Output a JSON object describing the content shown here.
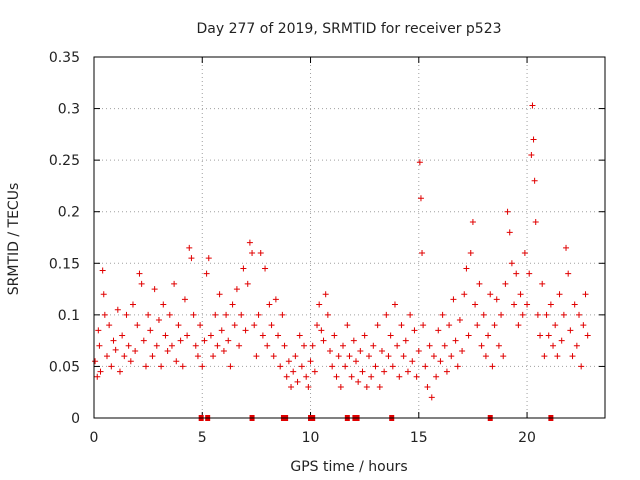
{
  "chart_data": {
    "type": "scatter",
    "title": "Day 277 of 2019, SRMTID for receiver p523",
    "xlabel": "GPS time / hours",
    "ylabel": "SRMTID / TECUs",
    "xlim": [
      0,
      23.6
    ],
    "ylim": [
      0,
      0.35
    ],
    "x_ticks": [
      0,
      5,
      10,
      15,
      20
    ],
    "x_tick_labels": [
      "0",
      "5",
      "10",
      "15",
      "20"
    ],
    "y_ticks": [
      0,
      0.05,
      0.1,
      0.15,
      0.2,
      0.25,
      0.3,
      0.35
    ],
    "y_tick_labels": [
      "0",
      "0.05",
      "0.1",
      "0.15",
      "0.2",
      "0.25",
      "0.3",
      "0.35"
    ],
    "grid": true,
    "marker": "plus",
    "series_color": "#e00000",
    "zero_markers_x": [
      4.95,
      5.25,
      7.3,
      8.75,
      8.85,
      10.0,
      10.1,
      11.7,
      12.05,
      12.15,
      13.75,
      18.3,
      21.1
    ],
    "series": [
      {
        "name": "SRMTID",
        "points": [
          [
            0.05,
            0.055
          ],
          [
            0.15,
            0.04
          ],
          [
            0.2,
            0.085
          ],
          [
            0.25,
            0.07
          ],
          [
            0.3,
            0.045
          ],
          [
            0.4,
            0.143
          ],
          [
            0.45,
            0.12
          ],
          [
            0.5,
            0.1
          ],
          [
            0.6,
            0.06
          ],
          [
            0.7,
            0.09
          ],
          [
            0.8,
            0.05
          ],
          [
            0.9,
            0.075
          ],
          [
            1.0,
            0.066
          ],
          [
            1.1,
            0.105
          ],
          [
            1.2,
            0.045
          ],
          [
            1.3,
            0.08
          ],
          [
            1.4,
            0.06
          ],
          [
            1.5,
            0.1
          ],
          [
            1.6,
            0.07
          ],
          [
            1.7,
            0.055
          ],
          [
            1.8,
            0.11
          ],
          [
            1.9,
            0.065
          ],
          [
            2.0,
            0.09
          ],
          [
            2.1,
            0.14
          ],
          [
            2.2,
            0.13
          ],
          [
            2.3,
            0.075
          ],
          [
            2.4,
            0.05
          ],
          [
            2.5,
            0.1
          ],
          [
            2.6,
            0.085
          ],
          [
            2.7,
            0.06
          ],
          [
            2.8,
            0.125
          ],
          [
            2.9,
            0.07
          ],
          [
            3.0,
            0.095
          ],
          [
            3.1,
            0.05
          ],
          [
            3.2,
            0.11
          ],
          [
            3.3,
            0.08
          ],
          [
            3.4,
            0.065
          ],
          [
            3.5,
            0.1
          ],
          [
            3.6,
            0.07
          ],
          [
            3.7,
            0.13
          ],
          [
            3.8,
            0.055
          ],
          [
            3.9,
            0.09
          ],
          [
            4.0,
            0.075
          ],
          [
            4.1,
            0.05
          ],
          [
            4.2,
            0.115
          ],
          [
            4.3,
            0.08
          ],
          [
            4.4,
            0.165
          ],
          [
            4.5,
            0.155
          ],
          [
            4.6,
            0.1
          ],
          [
            4.7,
            0.07
          ],
          [
            4.8,
            0.06
          ],
          [
            4.9,
            0.09
          ],
          [
            5.0,
            0.05
          ],
          [
            5.1,
            0.075
          ],
          [
            5.2,
            0.14
          ],
          [
            5.3,
            0.155
          ],
          [
            5.4,
            0.08
          ],
          [
            5.5,
            0.06
          ],
          [
            5.6,
            0.1
          ],
          [
            5.7,
            0.07
          ],
          [
            5.8,
            0.12
          ],
          [
            5.9,
            0.085
          ],
          [
            6.0,
            0.065
          ],
          [
            6.1,
            0.1
          ],
          [
            6.2,
            0.075
          ],
          [
            6.3,
            0.05
          ],
          [
            6.4,
            0.11
          ],
          [
            6.5,
            0.09
          ],
          [
            6.6,
            0.125
          ],
          [
            6.7,
            0.07
          ],
          [
            6.8,
            0.1
          ],
          [
            6.9,
            0.145
          ],
          [
            7.0,
            0.085
          ],
          [
            7.1,
            0.13
          ],
          [
            7.2,
            0.17
          ],
          [
            7.3,
            0.16
          ],
          [
            7.4,
            0.09
          ],
          [
            7.5,
            0.06
          ],
          [
            7.6,
            0.1
          ],
          [
            7.7,
            0.16
          ],
          [
            7.8,
            0.08
          ],
          [
            7.9,
            0.145
          ],
          [
            8.0,
            0.07
          ],
          [
            8.1,
            0.11
          ],
          [
            8.2,
            0.09
          ],
          [
            8.3,
            0.06
          ],
          [
            8.4,
            0.115
          ],
          [
            8.5,
            0.08
          ],
          [
            8.6,
            0.05
          ],
          [
            8.7,
            0.1
          ],
          [
            8.8,
            0.07
          ],
          [
            8.9,
            0.04
          ],
          [
            9.0,
            0.055
          ],
          [
            9.1,
            0.03
          ],
          [
            9.2,
            0.045
          ],
          [
            9.3,
            0.06
          ],
          [
            9.4,
            0.035
          ],
          [
            9.5,
            0.08
          ],
          [
            9.6,
            0.05
          ],
          [
            9.7,
            0.07
          ],
          [
            9.8,
            0.04
          ],
          [
            9.9,
            0.03
          ],
          [
            10.0,
            0.055
          ],
          [
            10.1,
            0.07
          ],
          [
            10.2,
            0.045
          ],
          [
            10.3,
            0.09
          ],
          [
            10.4,
            0.11
          ],
          [
            10.5,
            0.085
          ],
          [
            10.6,
            0.075
          ],
          [
            10.7,
            0.12
          ],
          [
            10.8,
            0.1
          ],
          [
            10.9,
            0.065
          ],
          [
            11.0,
            0.05
          ],
          [
            11.1,
            0.08
          ],
          [
            11.2,
            0.04
          ],
          [
            11.3,
            0.06
          ],
          [
            11.4,
            0.03
          ],
          [
            11.5,
            0.07
          ],
          [
            11.6,
            0.05
          ],
          [
            11.7,
            0.09
          ],
          [
            11.8,
            0.06
          ],
          [
            11.9,
            0.04
          ],
          [
            12.0,
            0.075
          ],
          [
            12.1,
            0.055
          ],
          [
            12.2,
            0.035
          ],
          [
            12.3,
            0.065
          ],
          [
            12.4,
            0.045
          ],
          [
            12.5,
            0.08
          ],
          [
            12.6,
            0.03
          ],
          [
            12.7,
            0.06
          ],
          [
            12.8,
            0.04
          ],
          [
            12.9,
            0.07
          ],
          [
            13.0,
            0.05
          ],
          [
            13.1,
            0.09
          ],
          [
            13.2,
            0.03
          ],
          [
            13.3,
            0.065
          ],
          [
            13.4,
            0.045
          ],
          [
            13.5,
            0.1
          ],
          [
            13.6,
            0.06
          ],
          [
            13.7,
            0.08
          ],
          [
            13.8,
            0.05
          ],
          [
            13.9,
            0.11
          ],
          [
            14.0,
            0.07
          ],
          [
            14.1,
            0.04
          ],
          [
            14.2,
            0.09
          ],
          [
            14.3,
            0.06
          ],
          [
            14.4,
            0.075
          ],
          [
            14.5,
            0.045
          ],
          [
            14.6,
            0.1
          ],
          [
            14.7,
            0.055
          ],
          [
            14.8,
            0.085
          ],
          [
            14.9,
            0.04
          ],
          [
            15.0,
            0.065
          ],
          [
            15.05,
            0.248
          ],
          [
            15.1,
            0.213
          ],
          [
            15.15,
            0.16
          ],
          [
            15.2,
            0.09
          ],
          [
            15.3,
            0.05
          ],
          [
            15.4,
            0.03
          ],
          [
            15.5,
            0.07
          ],
          [
            15.6,
            0.02
          ],
          [
            15.7,
            0.06
          ],
          [
            15.8,
            0.04
          ],
          [
            15.9,
            0.085
          ],
          [
            16.0,
            0.055
          ],
          [
            16.1,
            0.1
          ],
          [
            16.2,
            0.07
          ],
          [
            16.3,
            0.045
          ],
          [
            16.4,
            0.09
          ],
          [
            16.5,
            0.06
          ],
          [
            16.6,
            0.115
          ],
          [
            16.7,
            0.075
          ],
          [
            16.8,
            0.05
          ],
          [
            16.9,
            0.095
          ],
          [
            17.0,
            0.065
          ],
          [
            17.1,
            0.12
          ],
          [
            17.2,
            0.145
          ],
          [
            17.3,
            0.08
          ],
          [
            17.4,
            0.16
          ],
          [
            17.5,
            0.19
          ],
          [
            17.6,
            0.11
          ],
          [
            17.7,
            0.09
          ],
          [
            17.8,
            0.13
          ],
          [
            17.9,
            0.07
          ],
          [
            18.0,
            0.1
          ],
          [
            18.1,
            0.06
          ],
          [
            18.2,
            0.08
          ],
          [
            18.3,
            0.12
          ],
          [
            18.4,
            0.05
          ],
          [
            18.5,
            0.09
          ],
          [
            18.6,
            0.115
          ],
          [
            18.7,
            0.07
          ],
          [
            18.8,
            0.1
          ],
          [
            18.9,
            0.06
          ],
          [
            19.0,
            0.13
          ],
          [
            19.1,
            0.2
          ],
          [
            19.2,
            0.18
          ],
          [
            19.3,
            0.15
          ],
          [
            19.4,
            0.11
          ],
          [
            19.5,
            0.14
          ],
          [
            19.6,
            0.09
          ],
          [
            19.7,
            0.12
          ],
          [
            19.8,
            0.1
          ],
          [
            19.9,
            0.16
          ],
          [
            20.0,
            0.11
          ],
          [
            20.1,
            0.14
          ],
          [
            20.2,
            0.255
          ],
          [
            20.25,
            0.303
          ],
          [
            20.3,
            0.27
          ],
          [
            20.35,
            0.23
          ],
          [
            20.4,
            0.19
          ],
          [
            20.5,
            0.1
          ],
          [
            20.6,
            0.08
          ],
          [
            20.7,
            0.13
          ],
          [
            20.8,
            0.06
          ],
          [
            20.9,
            0.1
          ],
          [
            21.0,
            0.08
          ],
          [
            21.1,
            0.11
          ],
          [
            21.2,
            0.07
          ],
          [
            21.3,
            0.09
          ],
          [
            21.4,
            0.06
          ],
          [
            21.5,
            0.12
          ],
          [
            21.6,
            0.075
          ],
          [
            21.7,
            0.1
          ],
          [
            21.8,
            0.165
          ],
          [
            21.9,
            0.14
          ],
          [
            22.0,
            0.085
          ],
          [
            22.1,
            0.06
          ],
          [
            22.2,
            0.11
          ],
          [
            22.3,
            0.07
          ],
          [
            22.4,
            0.1
          ],
          [
            22.5,
            0.05
          ],
          [
            22.6,
            0.09
          ],
          [
            22.7,
            0.12
          ],
          [
            22.8,
            0.08
          ]
        ]
      }
    ]
  }
}
